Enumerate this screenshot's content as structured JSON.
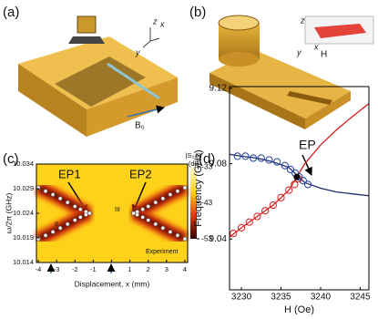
{
  "panels": [
    {
      "label": "(a)",
      "axes": [
        "x",
        "y",
        "z"
      ],
      "field": "B₀"
    },
    {
      "label": "(b)",
      "axes": [
        "z",
        "x",
        "y"
      ],
      "field": "H"
    }
  ],
  "chart_data": [
    {
      "type": "scatter",
      "panel_label": "(c)",
      "ylabel": "ω/2π (GHz)",
      "xlabel": "Displacement, x (mm)",
      "xlim": [
        -4.1,
        4.15
      ],
      "ylim": [
        10.014,
        10.034
      ],
      "xticks": [
        -4,
        -3,
        -2,
        -1,
        0,
        1,
        2,
        3,
        4
      ],
      "yticks": [
        10.014,
        10.019,
        10.024,
        10.029,
        10.034
      ],
      "annotations": [
        "EP1",
        "EP2",
        "I",
        "II",
        "III",
        "Experiment"
      ],
      "colorbar": {
        "title": "|S₂₁|²",
        "unit": "(dB)",
        "clim": [
          -53,
          -33
        ],
        "ticks": [
          -33,
          -43,
          -53
        ]
      },
      "series": [
        {
          "color": "#ffffff",
          "x": [
            -4,
            -3.6,
            -3.2,
            -2.8,
            -2.4,
            -2,
            -1.7,
            -1.4,
            -1.2
          ],
          "values": [
            10.0292,
            10.0285,
            10.0278,
            10.027,
            10.0262,
            10.0254,
            10.0248,
            10.0243,
            10.024
          ]
        },
        {
          "color": "#ffffff",
          "x": [
            -4,
            -3.6,
            -3.2,
            -2.8,
            -2.4,
            -2,
            -1.7,
            -1.4,
            -1.2
          ],
          "values": [
            10.0188,
            10.0195,
            10.0202,
            10.021,
            10.0218,
            10.0226,
            10.0232,
            10.0237,
            10.024
          ]
        },
        {
          "color": "#ffffff",
          "x": [
            1.2,
            1.4,
            1.7,
            2,
            2.4,
            2.8,
            3.2,
            3.6,
            4
          ],
          "values": [
            10.024,
            10.0243,
            10.0248,
            10.0254,
            10.0262,
            10.027,
            10.0278,
            10.0285,
            10.0292
          ]
        },
        {
          "color": "#ffffff",
          "x": [
            1.2,
            1.4,
            1.7,
            2,
            2.4,
            2.8,
            3.2,
            3.6,
            4
          ],
          "values": [
            10.024,
            10.0237,
            10.0232,
            10.0226,
            10.0218,
            10.021,
            10.0202,
            10.0195,
            10.0188
          ]
        }
      ]
    },
    {
      "type": "line",
      "panel_label": "(d)",
      "ylabel": "Frequency (GHz)",
      "xlabel": "H (Oe)",
      "xlim": [
        3228.5,
        3246.1
      ],
      "ylim": [
        9.013,
        9.121
      ],
      "xticks": [
        3230,
        3235,
        3240,
        3245
      ],
      "yticks": [
        9.04,
        9.08,
        9.12
      ],
      "annotations": [
        "EP"
      ],
      "series": [
        {
          "color": "#1f2a6b",
          "mode": "lines",
          "x": [
            3228.5,
            3230,
            3232,
            3234,
            3236,
            3237,
            3238,
            3240,
            3242,
            3244,
            3246.1
          ],
          "values": [
            9.085,
            9.084,
            9.083,
            9.081,
            9.078,
            9.074,
            9.07,
            9.067,
            9.065,
            9.064,
            9.063
          ]
        },
        {
          "color": "#d42020",
          "mode": "lines",
          "x": [
            3228.5,
            3230,
            3232,
            3234,
            3236,
            3237,
            3238,
            3240,
            3242,
            3244,
            3246.1
          ],
          "values": [
            9.041,
            9.046,
            9.052,
            9.058,
            9.066,
            9.073,
            9.08,
            9.09,
            9.098,
            9.105,
            9.112
          ]
        },
        {
          "color": "#1f3fa0",
          "mode": "markers",
          "x": [
            3229.5,
            3230.5,
            3231.5,
            3232.5,
            3233.5,
            3234.5,
            3235.5,
            3236.2,
            3236.8,
            3237.3,
            3237.8,
            3238.4
          ],
          "values": [
            9.084,
            9.084,
            9.083,
            9.083,
            9.082,
            9.081,
            9.079,
            9.077,
            9.075,
            9.073,
            9.071,
            9.069
          ]
        },
        {
          "color": "#d42020",
          "mode": "markers",
          "x": [
            3229,
            3230,
            3231,
            3232,
            3233,
            3234,
            3235,
            3236,
            3236.7,
            3237.2
          ],
          "values": [
            9.043,
            9.046,
            9.049,
            9.052,
            9.055,
            9.058,
            9.062,
            9.066,
            9.069,
            9.072
          ]
        },
        {
          "color": "#000000",
          "mode": "dot",
          "x": [
            3237
          ],
          "values": [
            9.073
          ]
        }
      ]
    }
  ]
}
